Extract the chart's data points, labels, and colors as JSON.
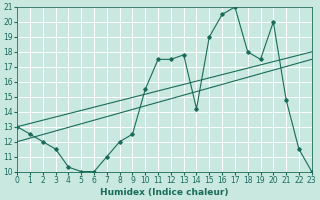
{
  "xlabel": "Humidex (Indice chaleur)",
  "xlim": [
    0,
    23
  ],
  "ylim": [
    10,
    21
  ],
  "yticks": [
    10,
    11,
    12,
    13,
    14,
    15,
    16,
    17,
    18,
    19,
    20,
    21
  ],
  "xticks": [
    0,
    1,
    2,
    3,
    4,
    5,
    6,
    7,
    8,
    9,
    10,
    11,
    12,
    13,
    14,
    15,
    16,
    17,
    18,
    19,
    20,
    21,
    22,
    23
  ],
  "bg_color": "#c8e8e0",
  "grid_color": "#ffffff",
  "line_color": "#1a6b5a",
  "line1_x": [
    0,
    1,
    2,
    3,
    4,
    5,
    6,
    7,
    8,
    9,
    10,
    11,
    12,
    13,
    14,
    15,
    16,
    17,
    18,
    19,
    20,
    21,
    22,
    23
  ],
  "line1_y": [
    13.0,
    12.5,
    12.0,
    11.5,
    10.3,
    10.0,
    10.0,
    11.0,
    12.0,
    12.5,
    15.5,
    17.5,
    17.5,
    17.8,
    14.2,
    19.0,
    20.5,
    21.0,
    18.0,
    17.5,
    20.0,
    14.8,
    11.5,
    10.0
  ],
  "line2_x": [
    0,
    23
  ],
  "line2_y": [
    13.0,
    18.0
  ],
  "line3_x": [
    0,
    23
  ],
  "line3_y": [
    12.0,
    17.5
  ],
  "marker_style": "D",
  "marker_size": 1.8,
  "line_width": 0.8,
  "tick_fontsize": 5.5,
  "xlabel_fontsize": 6.5
}
